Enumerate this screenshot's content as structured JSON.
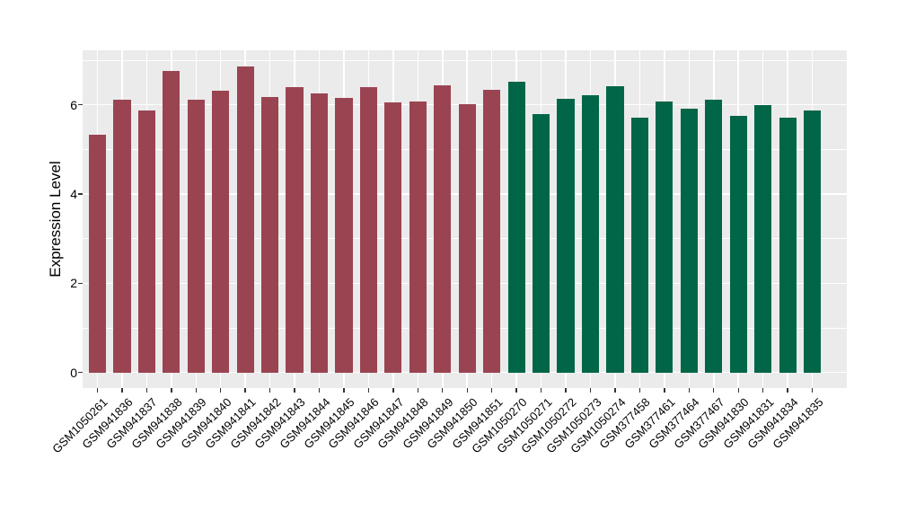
{
  "figure": {
    "background": "#FFFFFF",
    "panel_background": "#EBEBEB",
    "gridline_color": "#FFFFFF",
    "axis_text_color": "#000000",
    "tick_mark_color": "#333333"
  },
  "chart_data": {
    "type": "bar",
    "title": "",
    "xlabel": "",
    "ylabel": "Expression Level",
    "legend": "none",
    "grid": true,
    "x_tick_rotation_deg": 45,
    "ylim": [
      -0.35,
      7.22
    ],
    "y_major_ticks": [
      0,
      2,
      4,
      6
    ],
    "y_minor_gridlines": [
      1,
      3,
      5,
      7
    ],
    "categories": [
      "GSM1050261",
      "GSM941836",
      "GSM941837",
      "GSM941838",
      "GSM941839",
      "GSM941840",
      "GSM941841",
      "GSM941842",
      "GSM941843",
      "GSM941844",
      "GSM941845",
      "GSM941846",
      "GSM941847",
      "GSM941848",
      "GSM941849",
      "GSM941850",
      "GSM941851",
      "GSM1050270",
      "GSM1050271",
      "GSM1050272",
      "GSM1050273",
      "GSM1050274",
      "GSM377458",
      "GSM377461",
      "GSM377464",
      "GSM377467",
      "GSM941830",
      "GSM941831",
      "GSM941834",
      "GSM941835"
    ],
    "values": [
      5.33,
      6.12,
      5.87,
      6.75,
      6.12,
      6.32,
      6.86,
      6.18,
      6.39,
      6.25,
      6.16,
      6.4,
      6.05,
      6.07,
      6.43,
      6.01,
      6.33,
      6.52,
      5.79,
      6.14,
      6.22,
      6.42,
      5.7,
      6.08,
      5.92,
      6.12,
      5.75,
      5.99,
      5.7,
      5.88
    ],
    "bar_groups": [
      {
        "name": "group-1",
        "color": "#9A4452",
        "start_index": 0,
        "end_index": 16
      },
      {
        "name": "group-2",
        "color": "#016648",
        "start_index": 17,
        "end_index": 29
      }
    ],
    "bar_width_fraction": 0.7,
    "x_expand_units": 0.6
  }
}
